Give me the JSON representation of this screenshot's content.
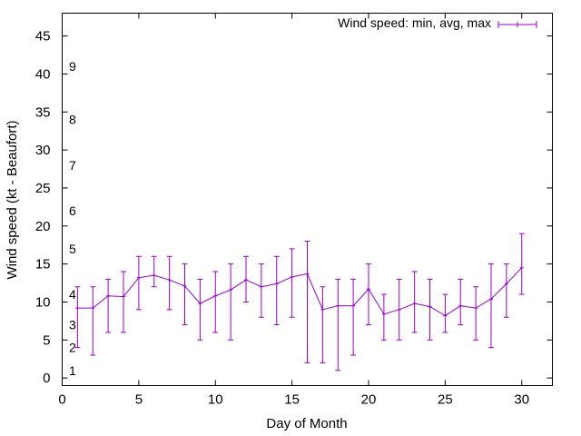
{
  "chart_data": {
    "type": "line",
    "xlabel": "Day of Month",
    "ylabel": "Wind speed (kt - Beaufort)",
    "xlim": [
      0,
      32
    ],
    "ylim": [
      -1,
      48
    ],
    "x_ticks": [
      0,
      5,
      10,
      15,
      20,
      25,
      30
    ],
    "y_ticks": [
      0,
      5,
      10,
      15,
      20,
      25,
      30,
      35,
      40,
      45
    ],
    "grid": false,
    "legend_position": "top-right",
    "colors": {
      "series": "#9400d3",
      "axis": "#000000"
    },
    "series": [
      {
        "name": "Wind speed: min, avg, max",
        "x": [
          1,
          2,
          3,
          4,
          5,
          6,
          7,
          8,
          9,
          10,
          11,
          12,
          13,
          14,
          15,
          16,
          17,
          18,
          19,
          20,
          21,
          22,
          23,
          24,
          25,
          26,
          27,
          28,
          29,
          30
        ],
        "avg": [
          9.2,
          9.2,
          10.8,
          10.7,
          13.2,
          13.5,
          12.9,
          12.1,
          9.8,
          10.8,
          11.6,
          12.9,
          12.0,
          12.4,
          13.3,
          13.7,
          9.0,
          9.5,
          9.5,
          11.7,
          8.4,
          9.0,
          9.8,
          9.4,
          8.2,
          9.5,
          9.2,
          10.4,
          12.4,
          14.5
        ],
        "min": [
          4,
          3,
          6,
          6,
          9,
          12,
          9,
          7,
          5,
          6,
          5,
          10,
          8,
          7,
          8,
          2,
          2,
          1,
          3,
          7,
          5,
          5,
          6,
          5,
          6,
          7,
          5,
          4,
          8,
          11
        ],
        "max": [
          12,
          12,
          13,
          14,
          16,
          16,
          16,
          15,
          13,
          14,
          15,
          16,
          15,
          16,
          17,
          18,
          12,
          13,
          13,
          15,
          11,
          13,
          14,
          13,
          11,
          13,
          12,
          15,
          15,
          19
        ]
      }
    ],
    "annotations": [
      {
        "text": "1",
        "y": 1
      },
      {
        "text": "2",
        "y": 4
      },
      {
        "text": "3",
        "y": 7
      },
      {
        "text": "4",
        "y": 11
      },
      {
        "text": "5",
        "y": 17
      },
      {
        "text": "6",
        "y": 22
      },
      {
        "text": "7",
        "y": 28
      },
      {
        "text": "8",
        "y": 34
      },
      {
        "text": "9",
        "y": 41
      }
    ]
  }
}
